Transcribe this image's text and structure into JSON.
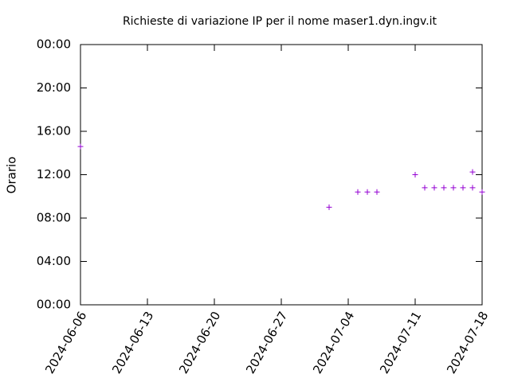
{
  "chart_data": {
    "type": "scatter",
    "title": "Richieste di variazione IP per il nome maser1.dyn.ingv.it",
    "y_label": "Orario",
    "color": "#9400d3",
    "marker": "+",
    "x": [
      "2024-06-06",
      "2024-07-02",
      "2024-07-05",
      "2024-07-06",
      "2024-07-07",
      "2024-07-11",
      "2024-07-12",
      "2024-07-13",
      "2024-07-14",
      "2024-07-15",
      "2024-07-16",
      "2024-07-17",
      "2024-07-17",
      "2024-07-18"
    ],
    "values": [
      14.6,
      9.0,
      10.4,
      10.4,
      10.4,
      12.0,
      10.8,
      10.8,
      10.8,
      10.8,
      10.8,
      12.25,
      10.8,
      10.4
    ],
    "xlim": [
      "2024-06-06",
      "2024-07-18"
    ],
    "xticks": [
      "2024-06-06",
      "2024-06-13",
      "2024-06-20",
      "2024-06-27",
      "2024-07-04",
      "2024-07-11",
      "2024-07-18"
    ],
    "ylim": [
      0,
      24
    ],
    "yticks": [
      {
        "value": 0,
        "label": "00:00"
      },
      {
        "value": 4,
        "label": "04:00"
      },
      {
        "value": 8,
        "label": "08:00"
      },
      {
        "value": 12,
        "label": "12:00"
      },
      {
        "value": 16,
        "label": "16:00"
      },
      {
        "value": 20,
        "label": "20:00"
      },
      {
        "value": 24,
        "label": "00:00"
      }
    ]
  }
}
